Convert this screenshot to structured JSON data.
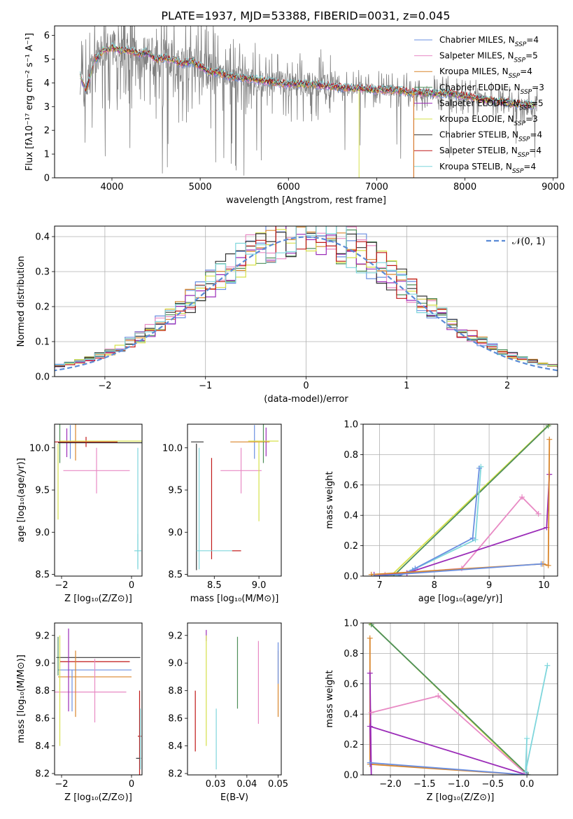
{
  "figure": {
    "title": "PLATE=1937, MJD=53388, FIBERID=0031, z=0.045"
  },
  "palette": {
    "Chabrier MILES": "#6a8fe0",
    "Salpeter MILES": "#e88ac4",
    "Kroupa MILES": "#d9862c",
    "Chabrier ELODIE": "#4e8f5a",
    "Salpeter ELODIE": "#9b2cb8",
    "Kroupa ELODIE": "#d6e04a",
    "Chabrier STELIB": "#333333",
    "Salpeter STELIB": "#c01818",
    "Kroupa STELIB": "#7fd6dc",
    "data": "#808080",
    "normal": "#5b8bd6"
  },
  "chart_data": [
    {
      "type": "line",
      "panel": "spectrum",
      "xlabel": "wavelength [Angstrom, rest frame]",
      "ylabel": "Flux [fλ10⁻¹⁷ erg cm⁻² s⁻¹ A⁻¹]",
      "xlim": [
        3350,
        9050
      ],
      "ylim": [
        0,
        6.4
      ],
      "xticks": [
        4000,
        5000,
        6000,
        7000,
        8000,
        9000
      ],
      "yticks": [
        0,
        1,
        2,
        3,
        4,
        5,
        6
      ],
      "legend_position": "top-right",
      "series": [
        {
          "name": "Chabrier MILES",
          "nssp": 4
        },
        {
          "name": "Salpeter MILES",
          "nssp": 5
        },
        {
          "name": "Kroupa MILES",
          "nssp": 4
        },
        {
          "name": "Chabrier ELODIE",
          "nssp": 3
        },
        {
          "name": "Salpeter ELODIE",
          "nssp": 5
        },
        {
          "name": "Kroupa ELODIE",
          "nssp": 3
        },
        {
          "name": "Chabrier STELIB",
          "nssp": 4
        },
        {
          "name": "Salpeter STELIB",
          "nssp": 4
        },
        {
          "name": "Kroupa STELIB",
          "nssp": 4
        }
      ],
      "continuum": {
        "x": [
          3640,
          3700,
          3750,
          3800,
          3850,
          3900,
          3950,
          4000,
          4100,
          4200,
          4300,
          4400,
          4500,
          4600,
          4700,
          4800,
          4900,
          5000,
          5100,
          5200,
          5300,
          5400,
          5500,
          5600,
          5700,
          5800,
          5900,
          6000,
          6200,
          6400,
          6600,
          6800,
          7000,
          7200,
          7400,
          7600,
          7800,
          8000,
          8200,
          8400,
          8600,
          8800
        ],
        "y": [
          4.3,
          3.7,
          4.2,
          5.0,
          5.1,
          5.4,
          5.4,
          5.5,
          5.35,
          5.35,
          5.2,
          5.3,
          5.0,
          5.05,
          4.95,
          4.8,
          4.9,
          4.7,
          4.45,
          4.45,
          4.3,
          4.25,
          4.2,
          4.15,
          4.1,
          4.05,
          4.0,
          3.95,
          3.95,
          3.9,
          3.8,
          3.75,
          3.7,
          3.7,
          3.6,
          3.55,
          3.55,
          3.45,
          3.3,
          3.2,
          3.1,
          3.05
        ]
      },
      "dropouts": [
        {
          "name": "Kroupa ELODIE",
          "x": 6800
        },
        {
          "name": "Salpeter STELIB",
          "x": 7420
        },
        {
          "name": "Kroupa MILES",
          "x": 7420
        }
      ]
    },
    {
      "type": "line",
      "panel": "residual-histogram",
      "xlabel": "(data-model)/error",
      "ylabel": "Normed distribution",
      "xlim": [
        -2.5,
        2.5
      ],
      "ylim": [
        0,
        0.43
      ],
      "xticks": [
        -2,
        -1,
        0,
        1,
        2
      ],
      "yticks": [
        0,
        0.1,
        0.2,
        0.3,
        0.4
      ],
      "grid": true,
      "legend_position": "top-right",
      "normal_label": "𝒩(0, 1)"
    },
    {
      "type": "scatter",
      "panel": "age-vs-Z",
      "xlabel": "Z [log₁₀(Z/Z⊙)]",
      "ylabel": "age  [log₁₀(age/yr)]",
      "xlim": [
        -2.2,
        0.3
      ],
      "ylim": [
        8.48,
        10.28
      ],
      "xticks": [
        -2,
        0
      ],
      "yticks": [
        8.5,
        9.0,
        9.5,
        10.0
      ],
      "points": [
        {
          "name": "Salpeter MILES",
          "x": -1.0,
          "y": 9.73,
          "xerr": 0.95,
          "yerr": 0.27
        },
        {
          "name": "Chabrier MILES",
          "x": -1.75,
          "y": 10.07,
          "xerr": 0.0,
          "yerr": 0.2
        },
        {
          "name": "Kroupa MILES",
          "x": -1.6,
          "y": 10.08,
          "xerr": 0.0,
          "yerr": 0.23
        },
        {
          "name": "Chabrier ELODIE",
          "x": -2.05,
          "y": 10.07,
          "xerr": 0.0,
          "yerr": 0.25
        },
        {
          "name": "Kroupa ELODIE",
          "x": -2.1,
          "y": 9.6,
          "xerr": 0.0,
          "yerr": 0.45
        },
        {
          "name": "Salpeter ELODIE",
          "x": -1.85,
          "y": 10.06,
          "xerr": 0.0,
          "yerr": 0.17
        },
        {
          "name": "Chabrier STELIB",
          "x": -0.9,
          "y": 10.06,
          "xerr": 1.2,
          "yerr": 0.0
        },
        {
          "name": "Salpeter STELIB",
          "x": -1.3,
          "y": 10.07,
          "xerr": 0.9,
          "yerr": 0.06
        },
        {
          "name": "Kroupa ELODIE",
          "x": -0.85,
          "y": 10.08,
          "xerr": 1.2,
          "yerr": 0.0
        },
        {
          "name": "Kroupa STELIB",
          "x": 0.18,
          "y": 9.28,
          "xerr": 0.0,
          "yerr": 0.72
        },
        {
          "name": "Kroupa STELIB",
          "x": 0.18,
          "y": 8.78,
          "xerr": 0.1,
          "yerr": 0.2
        }
      ]
    },
    {
      "type": "scatter",
      "panel": "age-vs-mass",
      "xlabel": "mass [log₁₀(M/M⊙)]",
      "xlim": [
        8.2,
        9.25
      ],
      "ylim": [
        8.48,
        10.28
      ],
      "xticks": [
        8.5,
        9.0
      ],
      "yticks": [
        8.5,
        9.0,
        9.5,
        10.0
      ],
      "points": [
        {
          "name": "Salpeter MILES",
          "x": 8.8,
          "y": 9.73,
          "xerr": 0.23,
          "yerr": 0.27
        },
        {
          "name": "Chabrier MILES",
          "x": 8.95,
          "y": 10.07,
          "xerr": 0.0,
          "yerr": 0.2
        },
        {
          "name": "Kroupa MILES",
          "x": 8.9,
          "y": 10.07,
          "xerr": 0.22,
          "yerr": 0.0
        },
        {
          "name": "Chabrier ELODIE",
          "x": 9.05,
          "y": 10.07,
          "xerr": 0.0,
          "yerr": 0.25
        },
        {
          "name": "Kroupa ELODIE",
          "x": 9.0,
          "y": 9.6,
          "xerr": 0.0,
          "yerr": 0.47
        },
        {
          "name": "Salpeter ELODIE",
          "x": 9.08,
          "y": 10.07,
          "xerr": 0.0,
          "yerr": 0.17
        },
        {
          "name": "Chabrier STELIB",
          "x": 8.3,
          "y": 9.3,
          "xerr": 0.0,
          "yerr": 0.75
        },
        {
          "name": "Salpeter STELIB",
          "x": 8.47,
          "y": 9.28,
          "xerr": 0.0,
          "yerr": 0.6
        },
        {
          "name": "Kroupa ELODIE",
          "x": 9.05,
          "y": 10.08,
          "xerr": 0.17,
          "yerr": 0.0
        },
        {
          "name": "Kroupa STELIB",
          "x": 8.33,
          "y": 9.28,
          "xerr": 0.0,
          "yerr": 0.72
        },
        {
          "name": "Kroupa STELIB",
          "x": 8.5,
          "y": 8.78,
          "xerr": 0.2,
          "yerr": 0.0
        },
        {
          "name": "Salpeter STELIB",
          "x": 8.75,
          "y": 8.78,
          "xerr": 0.05,
          "yerr": 0.0
        },
        {
          "name": "Chabrier STELIB",
          "x": 8.31,
          "y": 10.07,
          "xerr": 0.07,
          "yerr": 0.0
        }
      ]
    },
    {
      "type": "line",
      "panel": "mass-weight-vs-age",
      "xlabel": "age  [log₁₀(age/yr)]",
      "ylabel": "mass weight",
      "xlim": [
        6.7,
        10.25
      ],
      "ylim": [
        0,
        1.0
      ],
      "xticks": [
        7,
        8,
        9,
        10
      ],
      "yticks": [
        0.0,
        0.2,
        0.4,
        0.6,
        0.8,
        1.0
      ],
      "grid": true,
      "series": [
        {
          "name": "Kroupa ELODIE",
          "x": [
            7.2,
            10.1
          ],
          "y": [
            0.0,
            1.0
          ]
        },
        {
          "name": "Chabrier ELODIE",
          "x": [
            7.25,
            10.08
          ],
          "y": [
            0.0,
            0.99
          ]
        },
        {
          "name": "Kroupa STELIB",
          "x": [
            7.3,
            7.6,
            8.75,
            8.85
          ],
          "y": [
            0.0,
            0.04,
            0.24,
            0.72
          ]
        },
        {
          "name": "Chabrier MILES",
          "x": [
            7.35,
            7.65,
            8.7,
            8.82
          ],
          "y": [
            0.0,
            0.05,
            0.25,
            0.71
          ]
        },
        {
          "name": "Salpeter MILES",
          "x": [
            7.1,
            8.5,
            9.6,
            9.9
          ],
          "y": [
            0.01,
            0.05,
            0.52,
            0.41
          ]
        },
        {
          "name": "Salpeter ELODIE",
          "x": [
            6.9,
            7.5,
            10.05,
            10.1
          ],
          "y": [
            0.01,
            0.02,
            0.32,
            0.67
          ]
        },
        {
          "name": "Kroupa MILES",
          "x": [
            6.85,
            9.98,
            10.08,
            10.1
          ],
          "y": [
            0.01,
            0.08,
            0.07,
            0.9
          ]
        },
        {
          "name": "Chabrier MILES",
          "x": [
            6.9,
            9.95
          ],
          "y": [
            0.0,
            0.08
          ]
        }
      ]
    },
    {
      "type": "scatter",
      "panel": "mass-vs-Z",
      "xlabel": "Z [log₁₀(Z/Z⊙)]",
      "ylabel": "mass [log₁₀(M/M⊙)]",
      "xlim": [
        -2.2,
        0.3
      ],
      "ylim": [
        8.19,
        9.29
      ],
      "xticks": [
        -2,
        0
      ],
      "yticks": [
        8.2,
        8.4,
        8.6,
        8.8,
        9.0,
        9.2
      ],
      "points": [
        {
          "name": "Chabrier STELIB",
          "x": -0.95,
          "y": 9.04,
          "xerr": 1.2,
          "yerr": 0.0
        },
        {
          "name": "Salpeter STELIB",
          "x": -1.05,
          "y": 9.01,
          "xerr": 1.0,
          "yerr": 0.0
        },
        {
          "name": "Chabrier MILES",
          "x": -1.05,
          "y": 8.95,
          "xerr": 1.05,
          "yerr": 0.0
        },
        {
          "name": "Kroupa MILES",
          "x": -1.05,
          "y": 8.9,
          "xerr": 1.05,
          "yerr": 0.0
        },
        {
          "name": "Salpeter MILES",
          "x": -1.55,
          "y": 8.79,
          "xerr": 1.4,
          "yerr": 0.0
        },
        {
          "name": "Salpeter ELODIE",
          "x": -1.8,
          "y": 8.95,
          "xerr": 0.0,
          "yerr": 0.3
        },
        {
          "name": "Chabrier MILES",
          "x": -1.7,
          "y": 8.8,
          "xerr": 0.0,
          "yerr": 0.15
        },
        {
          "name": "Kroupa ELODIE",
          "x": -2.05,
          "y": 8.8,
          "xerr": 0.0,
          "yerr": 0.4
        },
        {
          "name": "Chabrier ELODIE",
          "x": -2.1,
          "y": 9.05,
          "xerr": 0.0,
          "yerr": 0.14
        },
        {
          "name": "Kroupa MILES",
          "x": -1.6,
          "y": 8.85,
          "xerr": 0.0,
          "yerr": 0.24
        },
        {
          "name": "Salpeter MILES",
          "x": -1.05,
          "y": 8.8,
          "xerr": 0.0,
          "yerr": 0.23
        },
        {
          "name": "Salpeter STELIB",
          "x": 0.23,
          "y": 8.47,
          "xerr": 0.05,
          "yerr": 0.33
        },
        {
          "name": "Chabrier STELIB",
          "x": 0.2,
          "y": 8.31,
          "xerr": 0.07,
          "yerr": 0.0
        },
        {
          "name": "Kroupa STELIB",
          "x": 0.25,
          "y": 8.45,
          "xerr": 0.0,
          "yerr": 0.22
        }
      ]
    },
    {
      "type": "scatter",
      "panel": "mass-vs-EBV",
      "xlabel": "E(B-V)",
      "xlim": [
        0.021,
        0.051
      ],
      "ylim": [
        8.19,
        9.29
      ],
      "xticks": [
        0.03,
        0.04,
        0.05
      ],
      "yticks": [
        8.2,
        8.4,
        8.6,
        8.8,
        9.0,
        9.2
      ],
      "points": [
        {
          "name": "Salpeter STELIB",
          "x": 0.0235,
          "y": 8.58,
          "yerr": 0.22
        },
        {
          "name": "Salpeter ELODIE",
          "x": 0.027,
          "y": 9.2,
          "yerr": 0.04
        },
        {
          "name": "Kroupa ELODIE",
          "x": 0.027,
          "y": 8.8,
          "yerr": 0.4
        },
        {
          "name": "Kroupa STELIB",
          "x": 0.0302,
          "y": 8.45,
          "yerr": 0.22
        },
        {
          "name": "Chabrier ELODIE",
          "x": 0.037,
          "y": 8.93,
          "yerr": 0.26
        },
        {
          "name": "Salpeter MILES",
          "x": 0.0437,
          "y": 8.86,
          "yerr": 0.3
        },
        {
          "name": "Kroupa MILES",
          "x": 0.05,
          "y": 8.85,
          "yerr": 0.24
        },
        {
          "name": "Chabrier MILES",
          "x": 0.05,
          "y": 9.0,
          "yerr": 0.15
        }
      ]
    },
    {
      "type": "line",
      "panel": "mass-weight-vs-Z",
      "xlabel": "Z [log₁₀(Z/Z⊙)]",
      "ylabel": "mass weight",
      "xlim": [
        -2.4,
        0.45
      ],
      "ylim": [
        0,
        1.0
      ],
      "xticks": [
        -2.0,
        -1.5,
        -1.0,
        -0.5,
        0.0
      ],
      "yticks": [
        0.0,
        0.2,
        0.4,
        0.6,
        0.8,
        1.0
      ],
      "grid": true,
      "series": [
        {
          "name": "Kroupa ELODIE",
          "x": [
            -2.3,
            0.0
          ],
          "y": [
            1.0,
            0.0
          ]
        },
        {
          "name": "Chabrier ELODIE",
          "x": [
            -2.28,
            0.02
          ],
          "y": [
            0.99,
            0.0
          ]
        },
        {
          "name": "Kroupa MILES",
          "x": [
            -2.3,
            -2.3,
            0.0
          ],
          "y": [
            0.9,
            0.07,
            0.0
          ]
        },
        {
          "name": "Salpeter ELODIE",
          "x": [
            -2.3,
            -2.28,
            -2.3,
            0.0
          ],
          "y": [
            0.67,
            0.0,
            0.32,
            0.0
          ]
        },
        {
          "name": "Salpeter MILES",
          "x": [
            -2.28,
            -1.3,
            0.0
          ],
          "y": [
            0.41,
            0.52,
            0.0
          ]
        },
        {
          "name": "Kroupa STELIB",
          "x": [
            0.0,
            -0.02,
            0.3
          ],
          "y": [
            0.24,
            0.02,
            0.72
          ]
        },
        {
          "name": "Chabrier MILES",
          "x": [
            -2.3,
            0.0
          ],
          "y": [
            0.08,
            0.0
          ]
        }
      ]
    }
  ]
}
